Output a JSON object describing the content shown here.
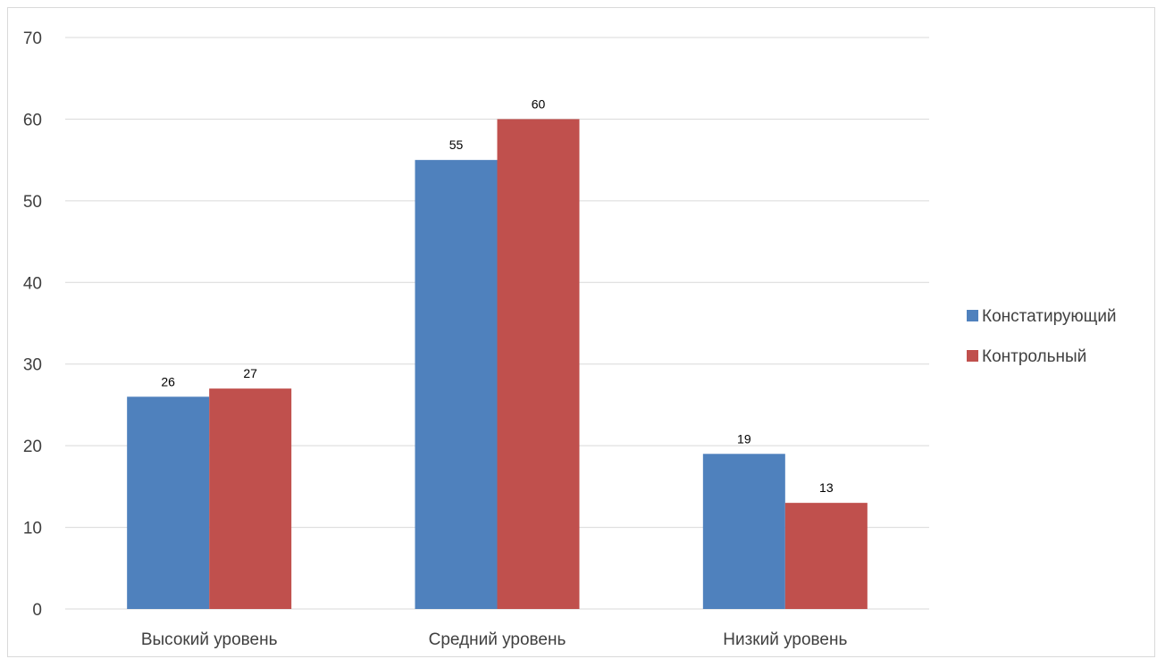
{
  "chart_data": {
    "type": "bar",
    "title": "",
    "xlabel": "",
    "ylabel": "",
    "categories": [
      "Высокий уровень",
      "Средний уровень",
      "Низкий уровень"
    ],
    "series": [
      {
        "name": "Констатирующий",
        "values": [
          26,
          55,
          19
        ],
        "color": "#4f81bd"
      },
      {
        "name": "Контрольный",
        "values": [
          27,
          60,
          13
        ],
        "color": "#c0504d"
      }
    ],
    "ylim": [
      0,
      70
    ],
    "yticks": [
      0,
      10,
      20,
      30,
      40,
      50,
      60,
      70
    ],
    "grid": true,
    "data_labels": true,
    "legend_position": "right"
  }
}
